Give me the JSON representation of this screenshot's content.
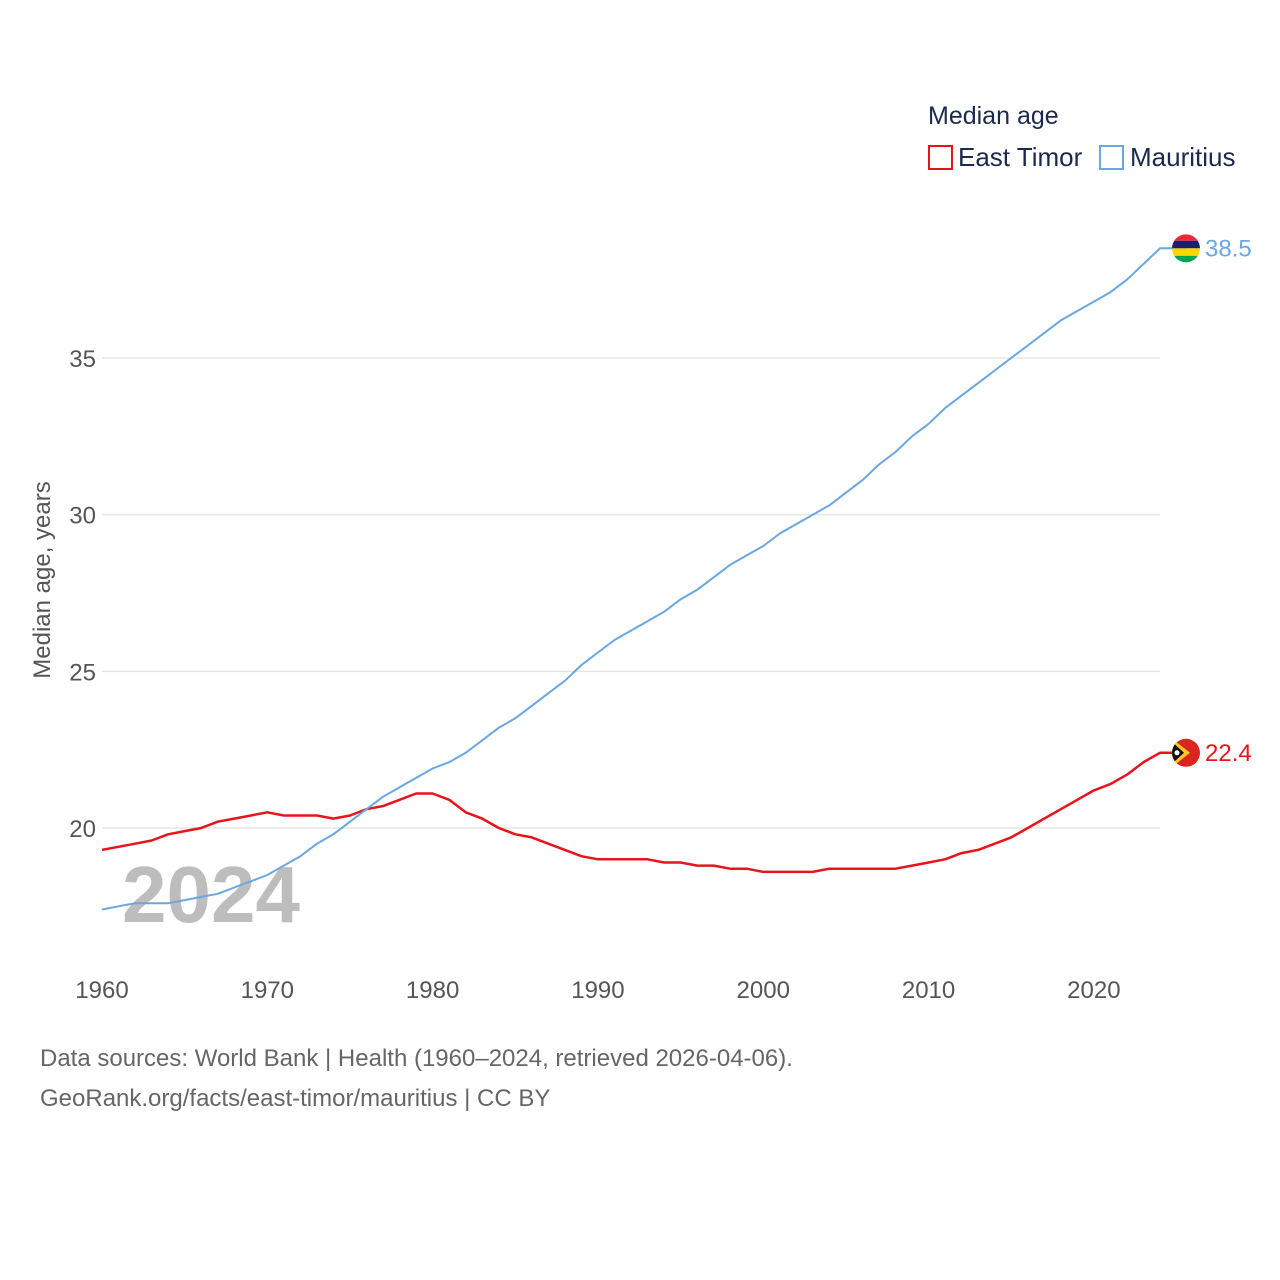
{
  "colors": {
    "east_timor": "#e8141c",
    "mauritius": "#6aa7e2",
    "grid": "#e6e6e6",
    "text": "#555555"
  },
  "legend": {
    "title": "Median age",
    "items": [
      "East Timor",
      "Mauritius"
    ]
  },
  "year_watermark": "2024",
  "end_labels": {
    "mauritius": "38.5",
    "east_timor": "22.4"
  },
  "footer": {
    "sources": "Data sources: World Bank | Health (1960–2024, retrieved 2026-04-06).",
    "credit": "GeoRank.org/facts/east-timor/mauritius | CC BY"
  },
  "chart_data": {
    "type": "line",
    "title": "Median age",
    "xlabel": "",
    "ylabel": "Median age, years",
    "xlim": [
      1960,
      2024
    ],
    "ylim": [
      16.2,
      39.5
    ],
    "x_ticks": [
      1960,
      1970,
      1980,
      1990,
      2000,
      2010,
      2020
    ],
    "y_ticks": [
      20,
      25,
      30,
      35
    ],
    "grid": true,
    "legend_position": "top-right",
    "x": [
      1960,
      1961,
      1962,
      1963,
      1964,
      1965,
      1966,
      1967,
      1968,
      1969,
      1970,
      1971,
      1972,
      1973,
      1974,
      1975,
      1976,
      1977,
      1978,
      1979,
      1980,
      1981,
      1982,
      1983,
      1984,
      1985,
      1986,
      1987,
      1988,
      1989,
      1990,
      1991,
      1992,
      1993,
      1994,
      1995,
      1996,
      1997,
      1998,
      1999,
      2000,
      2001,
      2002,
      2003,
      2004,
      2005,
      2006,
      2007,
      2008,
      2009,
      2010,
      2011,
      2012,
      2013,
      2014,
      2015,
      2016,
      2017,
      2018,
      2019,
      2020,
      2021,
      2022,
      2023,
      2024
    ],
    "series": [
      {
        "name": "East Timor",
        "values": [
          19.3,
          19.4,
          19.5,
          19.6,
          19.8,
          19.9,
          20.0,
          20.2,
          20.3,
          20.4,
          20.5,
          20.4,
          20.4,
          20.4,
          20.3,
          20.4,
          20.6,
          20.7,
          20.9,
          21.1,
          21.1,
          20.9,
          20.5,
          20.3,
          20.0,
          19.8,
          19.7,
          19.5,
          19.3,
          19.1,
          19.0,
          19.0,
          19.0,
          19.0,
          18.9,
          18.9,
          18.8,
          18.8,
          18.7,
          18.7,
          18.6,
          18.6,
          18.6,
          18.6,
          18.7,
          18.7,
          18.7,
          18.7,
          18.7,
          18.8,
          18.9,
          19.0,
          19.2,
          19.3,
          19.5,
          19.7,
          20.0,
          20.3,
          20.6,
          20.9,
          21.2,
          21.4,
          21.7,
          22.1,
          22.4
        ]
      },
      {
        "name": "Mauritius",
        "values": [
          17.4,
          17.5,
          17.6,
          17.6,
          17.6,
          17.7,
          17.8,
          17.9,
          18.1,
          18.3,
          18.5,
          18.8,
          19.1,
          19.5,
          19.8,
          20.2,
          20.6,
          21.0,
          21.3,
          21.6,
          21.9,
          22.1,
          22.4,
          22.8,
          23.2,
          23.5,
          23.9,
          24.3,
          24.7,
          25.2,
          25.6,
          26.0,
          26.3,
          26.6,
          26.9,
          27.3,
          27.6,
          28.0,
          28.4,
          28.7,
          29.0,
          29.4,
          29.7,
          30.0,
          30.3,
          30.7,
          31.1,
          31.6,
          32.0,
          32.5,
          32.9,
          33.4,
          33.8,
          34.2,
          34.6,
          35.0,
          35.4,
          35.8,
          36.2,
          36.5,
          36.8,
          37.1,
          37.5,
          38.0,
          38.5
        ]
      }
    ]
  }
}
